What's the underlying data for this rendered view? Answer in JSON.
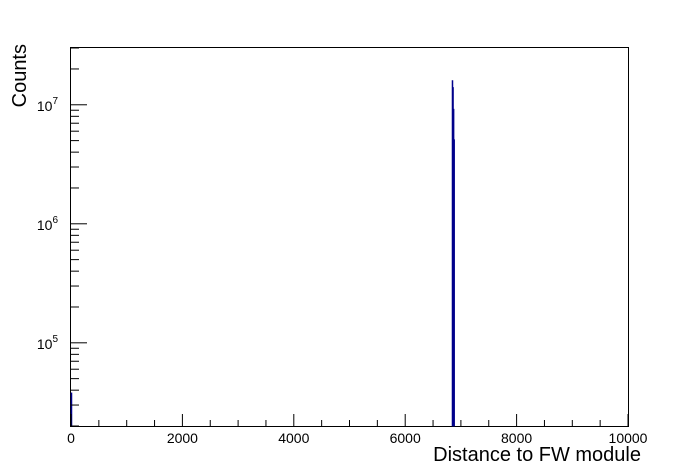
{
  "chart_data": {
    "type": "bar",
    "title": "",
    "xlabel": "Distance to FW module",
    "ylabel": "Counts",
    "xlim": [
      0,
      10000
    ],
    "ylim": [
      20000,
      30000000
    ],
    "y_scale": "log",
    "grid": false,
    "legend": "none",
    "x_ticks": [
      0,
      2000,
      4000,
      6000,
      8000,
      10000
    ],
    "x_tick_labels": [
      "0",
      "2000",
      "4000",
      "6000",
      "8000",
      "10000"
    ],
    "y_decades": [
      {
        "value": 100000,
        "base": "10",
        "exp": "5"
      },
      {
        "value": 1000000,
        "base": "10",
        "exp": "6"
      },
      {
        "value": 10000000,
        "base": "10",
        "exp": "7"
      }
    ],
    "bars": [
      {
        "x0": 0,
        "x1": 10,
        "value": 38000
      },
      {
        "x0": 6840,
        "x1": 6850,
        "value": 16000000
      },
      {
        "x0": 6850,
        "x1": 6860,
        "value": 14000000
      },
      {
        "x0": 6860,
        "x1": 6870,
        "value": 9200000
      },
      {
        "x0": 6870,
        "x1": 6880,
        "value": 5100000
      }
    ],
    "colors": {
      "bar_fill": "#00008b",
      "axis": "#000000"
    }
  }
}
